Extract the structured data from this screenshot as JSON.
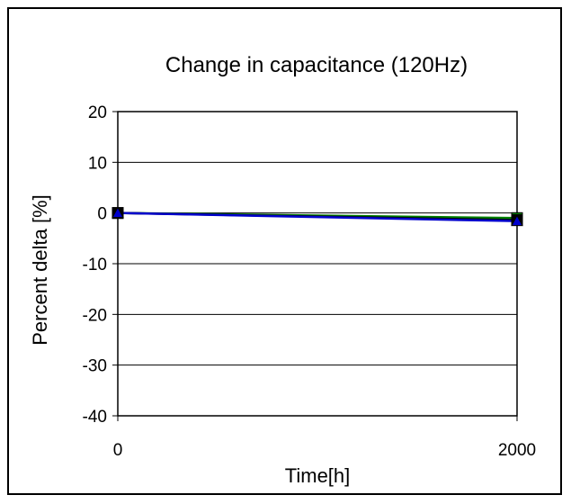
{
  "chart_data": {
    "type": "line",
    "title": "Change in capacitance (120Hz)",
    "xlabel": "Time[h]",
    "ylabel": "Percent delta [%]",
    "x": [
      0,
      2000
    ],
    "x_tick_labels": [
      "0",
      "2000"
    ],
    "ylim": [
      -40,
      20
    ],
    "y_ticks": [
      20,
      10,
      0,
      -10,
      -20,
      -30,
      -40
    ],
    "y_tick_labels": [
      "20",
      "10",
      "0",
      "-10",
      "-20",
      "-30",
      "-40"
    ],
    "grid": "horizontal",
    "legend": "none",
    "series": [
      {
        "color": "#008000",
        "marker": "square",
        "values": [
          0,
          -1.0
        ]
      },
      {
        "color": "#000000",
        "marker": "square",
        "values": [
          0,
          -1.4
        ]
      },
      {
        "color": "#0000cc",
        "marker": "triangle",
        "values": [
          0,
          -1.6
        ]
      }
    ]
  }
}
